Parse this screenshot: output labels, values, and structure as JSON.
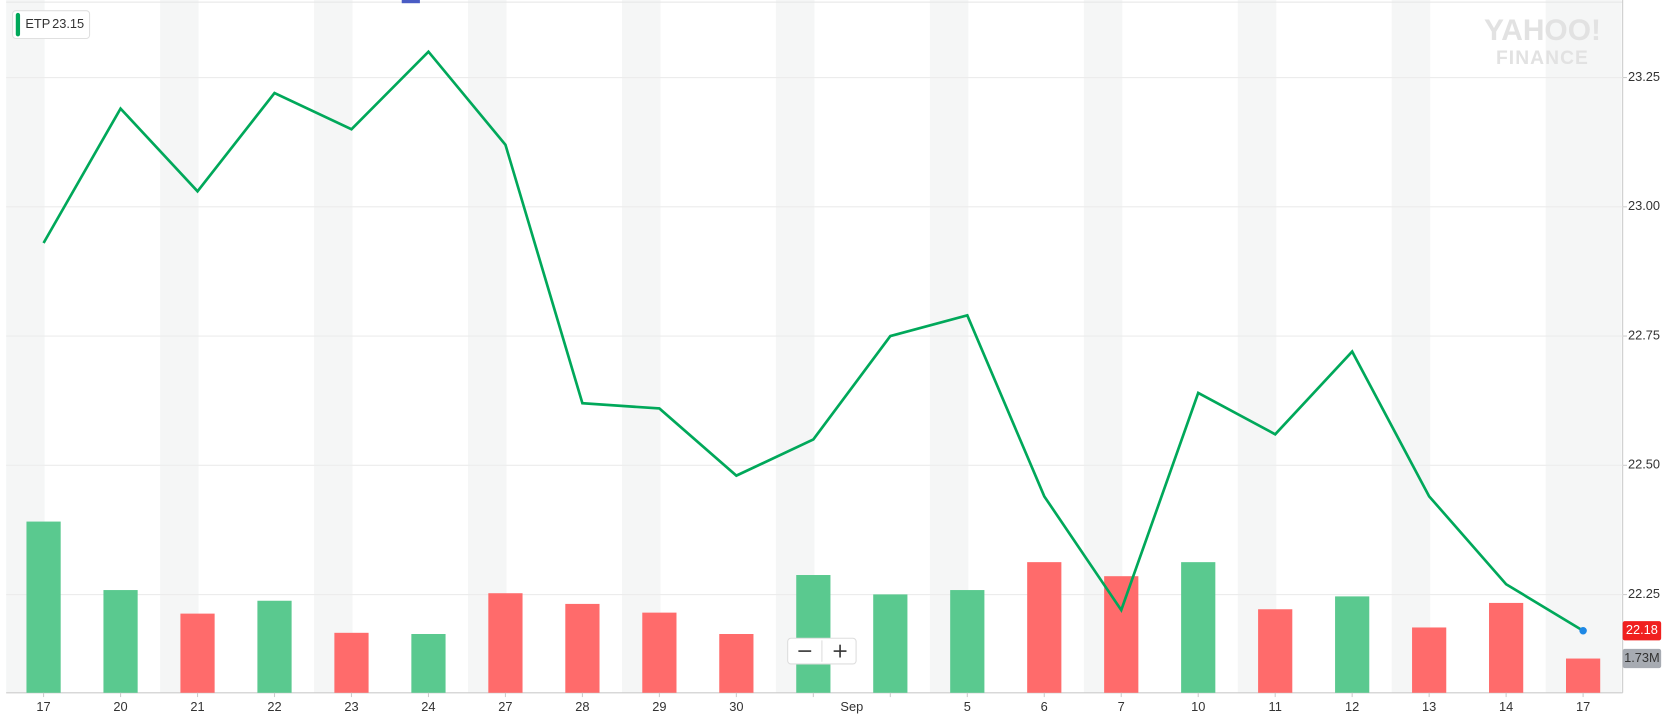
{
  "chart_data": {
    "type": "line",
    "categories": [
      "17",
      "20",
      "21",
      "22",
      "23",
      "24",
      "27",
      "28",
      "29",
      "30",
      null,
      null,
      "5",
      "6",
      "7",
      "10",
      "11",
      "12",
      "13",
      "14",
      "17"
    ],
    "x_annotation": "Sep",
    "series": [
      {
        "name": "ETP",
        "color": "#00a85a",
        "values": [
          22.93,
          23.19,
          23.03,
          23.22,
          23.15,
          23.3,
          23.12,
          22.62,
          22.61,
          22.48,
          22.55,
          22.75,
          22.79,
          22.44,
          22.22,
          22.64,
          22.56,
          22.72,
          22.44,
          22.27,
          22.18
        ]
      }
    ],
    "volume": {
      "values": [
        8.65,
        5.19,
        4.0,
        4.65,
        3.03,
        2.97,
        5.03,
        4.49,
        4.05,
        2.97,
        5.95,
        4.97,
        5.19,
        6.6,
        5.89,
        6.6,
        4.22,
        4.87,
        3.3,
        4.54,
        1.73
      ],
      "colors": [
        "#5ac98f",
        "#5ac98f",
        "#ff6b6b",
        "#5ac98f",
        "#ff6b6b",
        "#5ac98f",
        "#ff6b6b",
        "#ff6b6b",
        "#ff6b6b",
        "#ff6b6b",
        "#5ac98f",
        "#5ac98f",
        "#5ac98f",
        "#ff6b6b",
        "#ff6b6b",
        "#5ac98f",
        "#ff6b6b",
        "#5ac98f",
        "#ff6b6b",
        "#ff6b6b",
        "#ff6b6b"
      ],
      "value_labels": [
        null,
        null,
        null,
        null,
        null,
        null,
        null,
        null,
        null,
        null,
        null,
        null,
        null,
        null,
        null,
        null,
        null,
        null,
        null,
        null,
        "1.73M"
      ]
    },
    "vlim": [
      0,
      35
    ],
    "ylim": [
      22.06,
      23.4
    ],
    "yticks": [
      22.25,
      {
        "value": 22.5,
        "label": "22.50"
      },
      22.75,
      {
        "value": 23,
        "label": "23.00"
      },
      23.25
    ],
    "grid": true,
    "watermark": [
      "YAHOO!",
      "FINANCE"
    ]
  }
}
